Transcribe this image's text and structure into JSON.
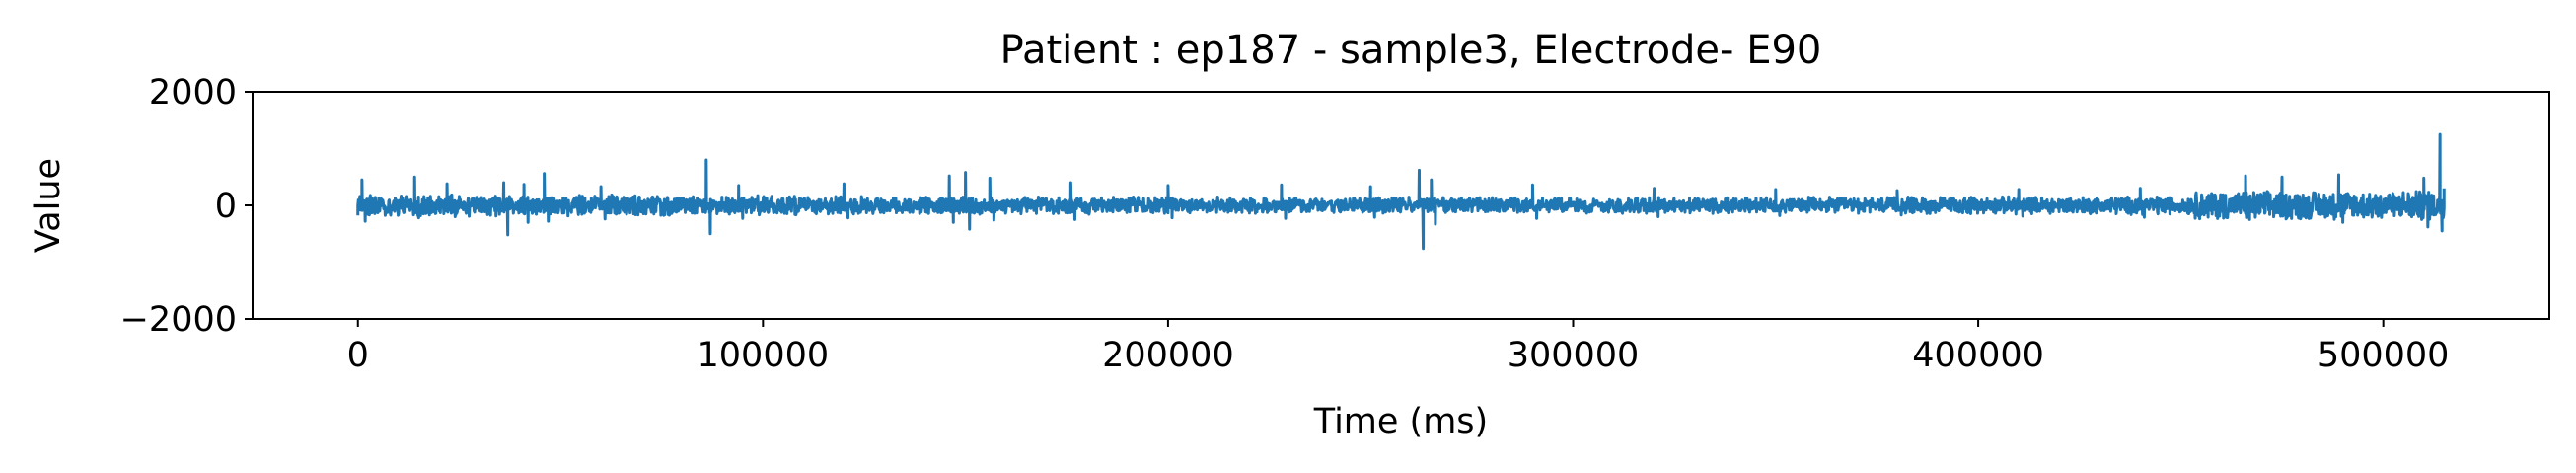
{
  "chart_data": {
    "type": "line",
    "title": "Patient : ep187 - sample3, Electrode- E90",
    "xlabel": "Time (ms)",
    "ylabel": "Value",
    "xlim": [
      -26000,
      541000
    ],
    "ylim": [
      -2000,
      2000
    ],
    "xticks": [
      0,
      100000,
      200000,
      300000,
      400000,
      500000
    ],
    "xtick_labels": [
      "0",
      "100000",
      "200000",
      "300000",
      "400000",
      "500000"
    ],
    "yticks": [
      -2000,
      0,
      2000
    ],
    "ytick_labels": [
      "−2000",
      "0",
      "2000"
    ],
    "grid": false,
    "series": [
      {
        "color": "#1f77b4",
        "x_range": [
          0,
          515000
        ],
        "points": [
          [
            0,
            0
          ],
          [
            1000,
            450
          ],
          [
            1800,
            -280
          ],
          [
            3000,
            150
          ],
          [
            5000,
            -120
          ],
          [
            14000,
            500
          ],
          [
            15000,
            -220
          ],
          [
            22000,
            380
          ],
          [
            24000,
            -200
          ],
          [
            36000,
            400
          ],
          [
            37000,
            -520
          ],
          [
            41000,
            370
          ],
          [
            42000,
            -300
          ],
          [
            46000,
            560
          ],
          [
            47000,
            -280
          ],
          [
            60000,
            330
          ],
          [
            61000,
            -240
          ],
          [
            86000,
            800
          ],
          [
            87000,
            -500
          ],
          [
            94000,
            350
          ],
          [
            95000,
            -230
          ],
          [
            120000,
            380
          ],
          [
            121000,
            -220
          ],
          [
            146000,
            520
          ],
          [
            147000,
            -300
          ],
          [
            150000,
            580
          ],
          [
            151000,
            -420
          ],
          [
            156000,
            480
          ],
          [
            157000,
            -260
          ],
          [
            176000,
            400
          ],
          [
            177000,
            -250
          ],
          [
            200000,
            350
          ],
          [
            201000,
            -220
          ],
          [
            228000,
            360
          ],
          [
            229000,
            -230
          ],
          [
            250000,
            330
          ],
          [
            251000,
            -210
          ],
          [
            262000,
            620
          ],
          [
            263000,
            -760
          ],
          [
            265000,
            450
          ],
          [
            266000,
            -330
          ],
          [
            290000,
            360
          ],
          [
            291000,
            -230
          ],
          [
            320000,
            300
          ],
          [
            321000,
            -200
          ],
          [
            350000,
            280
          ],
          [
            351000,
            -180
          ],
          [
            380000,
            260
          ],
          [
            381000,
            -170
          ],
          [
            410000,
            280
          ],
          [
            411000,
            -190
          ],
          [
            440000,
            300
          ],
          [
            441000,
            -210
          ],
          [
            466000,
            520
          ],
          [
            467000,
            -250
          ],
          [
            475000,
            500
          ],
          [
            476000,
            -240
          ],
          [
            489000,
            540
          ],
          [
            490000,
            -300
          ],
          [
            510000,
            480
          ],
          [
            511000,
            -380
          ],
          [
            514000,
            1250
          ],
          [
            514500,
            -450
          ],
          [
            515000,
            300
          ]
        ]
      }
    ]
  }
}
